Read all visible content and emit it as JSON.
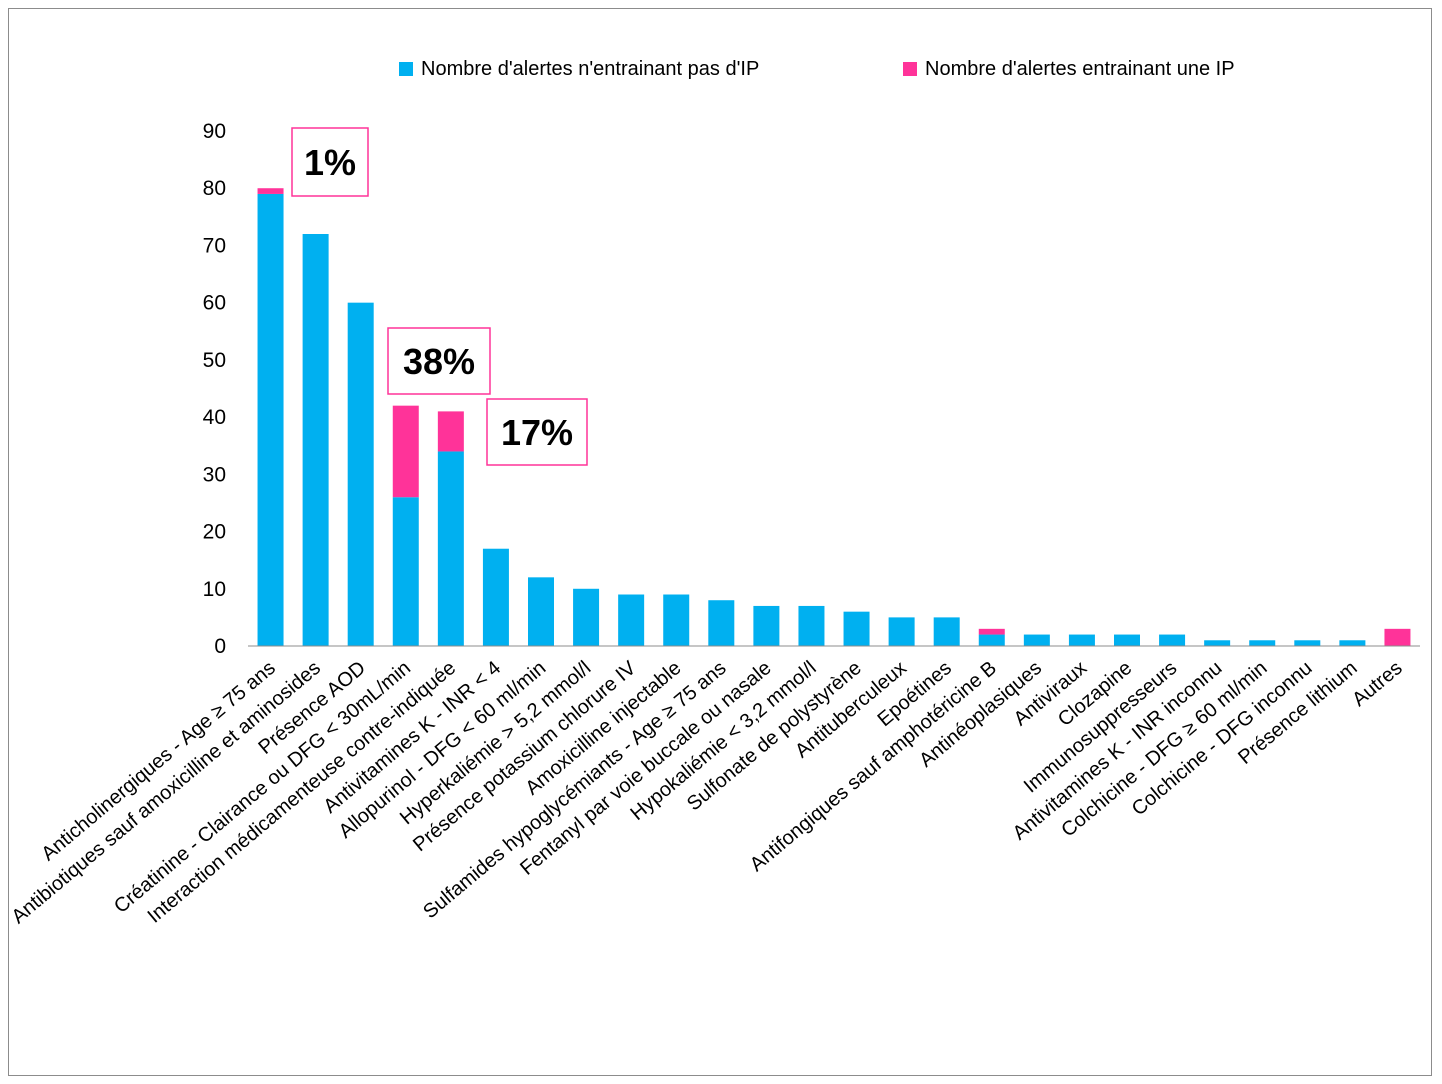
{
  "chart_data": {
    "type": "bar",
    "stacked": true,
    "legend_position": "top",
    "grid": false,
    "ylim": [
      0,
      90
    ],
    "yticks": [
      "0",
      "10",
      "20",
      "30",
      "40",
      "50",
      "60",
      "70",
      "80",
      "90"
    ],
    "categories": [
      "Anticholinergiques - Age ≥ 75 ans",
      "Antibiotiques sauf amoxicilline et aminosides",
      "Présence AOD",
      "Créatinine - Clairance ou DFG < 30mL/min",
      "Interaction médicamenteuse contre-indiquée",
      "Antivitamines K - INR < 4",
      "Allopurinol - DFG < 60 ml/min",
      "Hyperkaliémie > 5,2 mmol/l",
      "Présence potassium chlorure IV",
      "Amoxicilline injectable",
      "Sulfamides hypoglycémiants - Age ≥ 75 ans",
      "Fentanyl par voie buccale ou nasale",
      "Hypokaliémie < 3,2 mmol/l",
      "Sulfonate de polystyrène",
      "Antituberculeux",
      "Epoétines",
      "Antifongiques sauf amphotéricine B",
      "Antinéoplasiques",
      "Antiviraux",
      "Clozapine",
      "Immunosuppresseurs",
      "Antivitamines K - INR inconnu",
      "Colchicine - DFG ≥ 60 ml/min",
      "Colchicine - DFG inconnu",
      "Présence lithium",
      "Autres"
    ],
    "series": [
      {
        "name": "Nombre d'alertes n'entrainant pas d'IP",
        "color": "#00b0f0",
        "values": [
          79,
          72,
          60,
          26,
          34,
          17,
          12,
          10,
          9,
          9,
          8,
          7,
          7,
          6,
          5,
          5,
          2,
          2,
          2,
          2,
          2,
          1,
          1,
          1,
          1,
          0
        ]
      },
      {
        "name": "Nombre d'alertes entrainant une IP",
        "color": "#ff3399",
        "values": [
          1,
          0,
          0,
          16,
          7,
          0,
          0,
          0,
          0,
          0,
          0,
          0,
          0,
          0,
          0,
          0,
          1,
          0,
          0,
          0,
          0,
          0,
          0,
          0,
          0,
          3
        ]
      }
    ],
    "annotations": [
      {
        "text": "1%",
        "category_index": 0
      },
      {
        "text": "38%",
        "category_index": 3
      },
      {
        "text": "17%",
        "category_index": 4
      }
    ],
    "annotation_border_color": "#ff3399"
  }
}
